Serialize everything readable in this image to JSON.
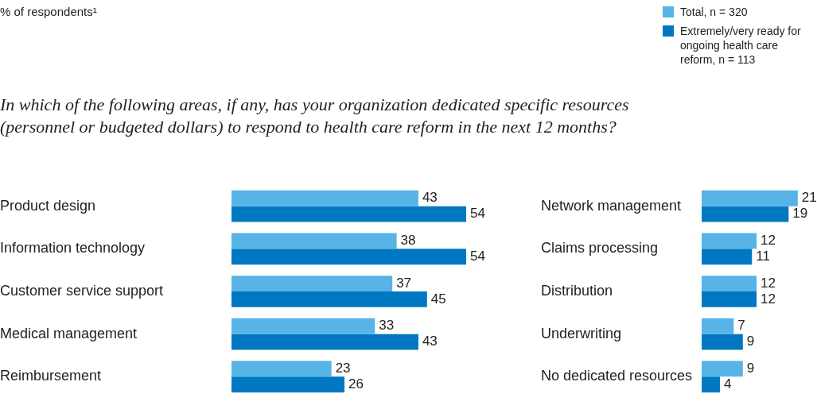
{
  "chart_data": [
    {
      "type": "bar",
      "orientation": "horizontal",
      "subtitle": "% of respondents¹",
      "title": "In which of the following areas, if any, has your organization dedicated specific resources (personnel or budgeted dollars) to respond to health care reform in the next 12 months?",
      "categories": [
        "Product design",
        "Information technology",
        "Customer service support",
        "Medical management",
        "Reimbursement"
      ],
      "data_labels": true,
      "legend": false,
      "series": [
        {
          "color": "#56b4e6",
          "values": [
            43,
            38,
            37,
            33,
            23
          ]
        },
        {
          "color": "#0078c1",
          "values": [
            54,
            54,
            45,
            43,
            26
          ]
        }
      ]
    },
    {
      "type": "bar",
      "orientation": "horizontal",
      "categories": [
        "Network management",
        "Claims processing",
        "Distribution",
        "Underwriting",
        "No dedicated resources"
      ],
      "data_labels": true,
      "legend": "top",
      "series": [
        {
          "name": "Total, n = 320",
          "color": "#56b4e6",
          "values": [
            21,
            12,
            12,
            7,
            9
          ]
        },
        {
          "name": "Extremely/very ready for ongoing health care reform, n = 113",
          "color": "#0078c1",
          "values": [
            19,
            11,
            12,
            9,
            4
          ]
        }
      ]
    }
  ]
}
